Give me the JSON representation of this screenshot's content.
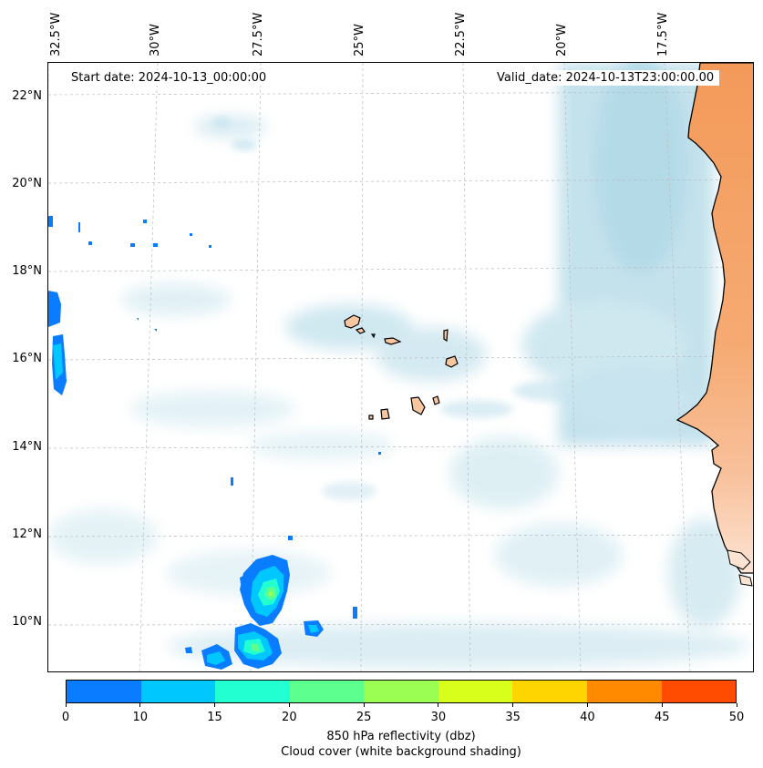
{
  "map": {
    "start_date_text": "Start date: 2024-10-13_00:00:00",
    "valid_date_text": "Valid_date: 2024-10-13T23:00:00.00",
    "lon_labels": [
      "32.5°W",
      "30°W",
      "27.5°W",
      "25°W",
      "22.5°W",
      "20°W",
      "17.5°W"
    ],
    "lat_labels": [
      "22°N",
      "20°N",
      "18°N",
      "16°N",
      "14°N",
      "12°N",
      "10°N"
    ],
    "extent": {
      "lon_min": -32.7,
      "lon_max": -15.4,
      "lat_min": 8.9,
      "lat_max": 22.8
    },
    "colors": {
      "land": "#f5a060",
      "land_light": "#fbd2b4",
      "ocean_cloud": "#cfe7f0",
      "gridline": "#bbbbbb"
    }
  },
  "colorbar": {
    "ticks": [
      "0",
      "10",
      "15",
      "20",
      "25",
      "30",
      "35",
      "40",
      "45",
      "50"
    ],
    "colors": [
      "#0a7cff",
      "#00c8ff",
      "#22ffd0",
      "#5dff8f",
      "#9bff53",
      "#d8ff1c",
      "#ffd500",
      "#ff8a00",
      "#ff4c00"
    ],
    "label_line1": "850 hPa reflectivity (dbz)",
    "label_line2": "Cloud cover (white background shading)"
  }
}
